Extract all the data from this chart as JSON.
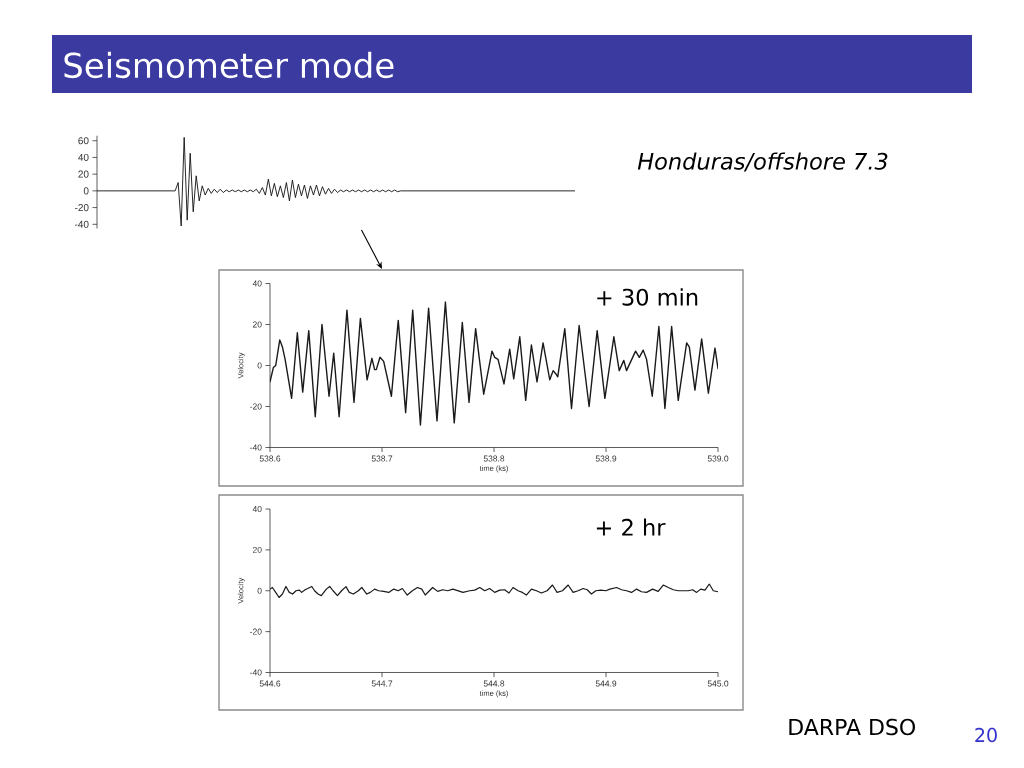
{
  "chart_data": [
    {
      "type": "line",
      "title": "Seismometer mode",
      "annotations": [
        "Honduras/offshore 7.3",
        "DARPA DSO",
        "20"
      ],
      "tick_labels": "y",
      "color": "#111111",
      "categories": [
        null,
        null,
        null,
        null,
        null,
        null,
        null,
        null,
        null,
        null,
        null,
        null,
        null,
        null,
        null,
        null,
        null,
        null,
        null,
        null,
        null,
        null,
        null,
        null,
        null,
        null,
        null,
        null,
        null,
        null,
        null,
        null,
        null,
        null,
        null,
        null,
        null,
        null,
        null,
        null,
        null,
        null,
        null,
        null,
        null,
        null,
        null,
        null,
        null,
        null,
        null,
        null,
        null,
        null,
        null,
        null,
        null,
        null,
        null,
        null,
        null,
        null,
        null,
        null,
        null,
        null,
        null,
        null,
        null,
        null,
        null,
        null,
        null,
        null,
        null,
        null,
        null,
        null,
        null,
        null,
        null,
        null,
        null,
        null,
        null,
        null,
        null,
        null,
        null,
        null,
        null,
        null,
        null,
        null,
        null,
        null,
        null,
        null,
        null,
        null,
        null,
        null,
        null,
        null,
        null,
        null,
        null,
        null,
        null,
        null,
        null,
        null,
        null,
        null,
        null,
        null,
        null,
        null,
        null,
        null,
        null,
        null,
        null,
        null,
        null,
        null,
        null,
        null,
        null,
        null,
        null,
        null,
        null,
        null,
        null,
        null,
        null,
        null,
        null,
        null,
        null,
        null,
        null,
        null,
        null,
        null,
        null,
        null,
        null,
        null,
        null,
        null,
        null,
        null,
        null,
        null,
        null,
        null,
        null,
        null
      ],
      "values": [
        0,
        0,
        0,
        0,
        0,
        0,
        0,
        0,
        0,
        0,
        0,
        0,
        0,
        0,
        0,
        0,
        0,
        0,
        0,
        0,
        0,
        0,
        0,
        0,
        0,
        0,
        0,
        10,
        -42,
        64,
        -35,
        45,
        -25,
        18,
        -12,
        6,
        -5,
        3,
        -3,
        2,
        -2,
        2,
        -2,
        1,
        -1,
        1,
        -1,
        1,
        -1,
        1,
        -1,
        1,
        -1,
        2,
        -3,
        4,
        -5,
        14,
        -6,
        9,
        -7,
        6,
        -8,
        10,
        -12,
        13,
        -8,
        8,
        -6,
        7,
        -9,
        6,
        -5,
        7,
        -6,
        5,
        -4,
        3,
        -3,
        2,
        -2,
        1,
        -1,
        1,
        -1,
        1,
        -1,
        1,
        -1,
        1,
        -1,
        1,
        -1,
        1,
        -1,
        1,
        -1,
        1,
        -1,
        1,
        -1,
        0,
        0,
        0,
        0,
        0,
        0,
        0,
        0,
        0,
        0,
        0,
        0,
        0,
        0,
        0,
        0,
        0,
        0,
        0,
        0,
        0,
        0,
        0,
        0,
        0,
        0,
        0,
        0,
        0,
        0,
        0,
        0,
        0,
        0,
        0,
        0,
        0,
        0,
        0,
        0,
        0,
        0,
        0,
        0,
        0,
        0,
        0,
        0,
        0,
        0,
        0,
        0,
        0,
        0,
        0,
        0,
        0,
        0,
        0
      ],
      "ylim": [
        -45,
        66
      ],
      "yticks": [
        60,
        40,
        20,
        0,
        -20,
        -40
      ]
    },
    {
      "type": "line",
      "annotations": [
        "+ 30 min"
      ],
      "xlabel": "time (ks)",
      "ylabel": "Velocity",
      "color": "#1a1a1a",
      "x": [
        538.6,
        538.603,
        538.6051,
        538.6087,
        538.6111,
        538.6135,
        538.6193,
        538.6244,
        538.6292,
        538.6346,
        538.6404,
        538.6464,
        538.6527,
        538.6569,
        538.6617,
        538.6687,
        538.675,
        538.6807,
        538.6867,
        538.691,
        538.6934,
        538.6949,
        538.6982,
        538.7015,
        538.7084,
        538.7145,
        538.7211,
        538.7274,
        538.7343,
        538.7416,
        538.7491,
        538.7566,
        538.7645,
        538.7717,
        538.7777,
        538.7836,
        538.7908,
        538.7982,
        538.8006,
        538.8036,
        538.8089,
        538.814,
        538.8176,
        538.823,
        538.8283,
        538.8334,
        538.8384,
        538.8438,
        538.8498,
        538.8528,
        538.8551,
        538.8569,
        538.8632,
        538.8692,
        538.876,
        538.8849,
        538.8921,
        538.899,
        538.907,
        538.9118,
        538.9159,
        538.9183,
        538.9264,
        538.9297,
        538.9332,
        538.9362,
        538.9413,
        538.9472,
        538.9526,
        538.9586,
        538.9645,
        538.972,
        538.9744,
        538.9794,
        538.9854,
        538.9914,
        538.9973,
        539.0
      ],
      "values": [
        -8,
        -1,
        0,
        12.5,
        9,
        3,
        -16,
        16,
        -13,
        17,
        -25,
        20,
        -15,
        6,
        -25,
        27,
        -18,
        23,
        -7,
        3.5,
        -2,
        -2,
        4,
        2,
        -15,
        22,
        -23,
        27,
        -29,
        28,
        -27,
        31,
        -28,
        21,
        -18,
        18,
        -14,
        7,
        4,
        3,
        -9,
        8,
        -6.5,
        14,
        -17,
        10,
        -8,
        11,
        -7,
        -2.5,
        -4,
        -5.5,
        18,
        -21,
        19.5,
        -20,
        17,
        -16,
        14,
        -2.5,
        2.5,
        -2.5,
        7,
        4,
        7.5,
        3,
        -15,
        19,
        -21,
        19,
        -17,
        11,
        9,
        -12,
        13,
        -13.5,
        8.5,
        -1.5
      ],
      "xlim": [
        538.6,
        539.0
      ],
      "xticks": [
        538.6,
        538.7,
        538.8,
        538.9,
        {
          "value": 539.0,
          "label": "539.0"
        }
      ],
      "ylim": [
        -40,
        40
      ],
      "yticks": [
        40,
        20,
        0,
        -20,
        -40
      ]
    },
    {
      "type": "line",
      "annotations": [
        "+ 2 hr"
      ],
      "xlabel": "time (ks)",
      "ylabel": "Velocity",
      "color": "#1a1a1a",
      "x": [
        544.6,
        544.6021,
        544.6051,
        544.6081,
        544.6111,
        544.6142,
        544.6172,
        544.6202,
        544.6232,
        544.6262,
        544.6283,
        544.6313,
        544.6337,
        544.6373,
        544.6398,
        544.6428,
        544.6458,
        544.6503,
        544.6533,
        544.6563,
        544.6602,
        544.6639,
        544.6678,
        544.6708,
        544.6744,
        544.6789,
        544.6819,
        544.6864,
        544.6895,
        544.6934,
        544.697,
        544.7015,
        544.706,
        544.7105,
        544.7145,
        544.7181,
        544.7226,
        544.7271,
        544.7316,
        544.7355,
        544.7386,
        544.7452,
        544.7497,
        544.7542,
        544.7587,
        544.7633,
        544.7678,
        544.7723,
        544.7783,
        544.7828,
        544.7873,
        544.7917,
        544.7961,
        544.8006,
        544.8051,
        544.8095,
        544.8134,
        544.817,
        544.8215,
        544.8253,
        544.8289,
        544.8334,
        544.8379,
        544.8423,
        544.8474,
        544.8522,
        544.8563,
        544.8611,
        544.8662,
        544.8706,
        544.8751,
        544.8796,
        544.8832,
        544.887,
        544.8909,
        544.8954,
        544.8999,
        544.9034,
        544.9094,
        544.9139,
        544.9183,
        544.9228,
        544.9273,
        544.9317,
        544.9362,
        544.9416,
        544.9466,
        544.9511,
        544.9556,
        544.9601,
        544.9645,
        544.969,
        544.9735,
        544.9774,
        544.9809,
        544.9845,
        544.9884,
        544.9922,
        544.9958,
        545.0
      ],
      "values": [
        0.8,
        1.6,
        -0.8,
        -3.3,
        -1.6,
        2.1,
        -0.8,
        -1.6,
        0,
        0.3,
        -0.8,
        0.5,
        1.1,
        2.1,
        0,
        -1.6,
        -2.4,
        0.8,
        2.1,
        0,
        -2.4,
        0,
        2,
        -0.8,
        -1.6,
        0,
        1.6,
        -1.6,
        -0.8,
        0.8,
        0,
        -0.3,
        -0.8,
        0.8,
        0,
        1.1,
        -2.1,
        0,
        1.6,
        0.8,
        -2.1,
        1.6,
        -0.3,
        0.5,
        0,
        0.8,
        0,
        -0.8,
        0,
        0.3,
        1.6,
        0,
        1.1,
        -0.8,
        0.3,
        0.5,
        -1.1,
        1.6,
        0,
        -0.8,
        -2.1,
        0.8,
        0,
        -1.1,
        0,
        2.8,
        -0.8,
        0,
        2.8,
        -0.8,
        0,
        1.1,
        0.5,
        -1.6,
        0,
        0.3,
        0,
        0.8,
        1.6,
        0.5,
        0,
        -0.8,
        0.8,
        -0.5,
        -0.8,
        0.8,
        -0.3,
        2.8,
        1.6,
        0.5,
        0,
        0,
        0,
        0.5,
        -0.8,
        0.8,
        0.3,
        3.3,
        0,
        -0.5
      ],
      "xlim": [
        544.6,
        545.0
      ],
      "xticks": [
        544.6,
        544.7,
        544.8,
        544.9,
        {
          "value": 545.0,
          "label": "545.0"
        }
      ],
      "ylim": [
        -40,
        40
      ],
      "yticks": [
        40,
        20,
        0,
        -20,
        -40
      ]
    }
  ]
}
